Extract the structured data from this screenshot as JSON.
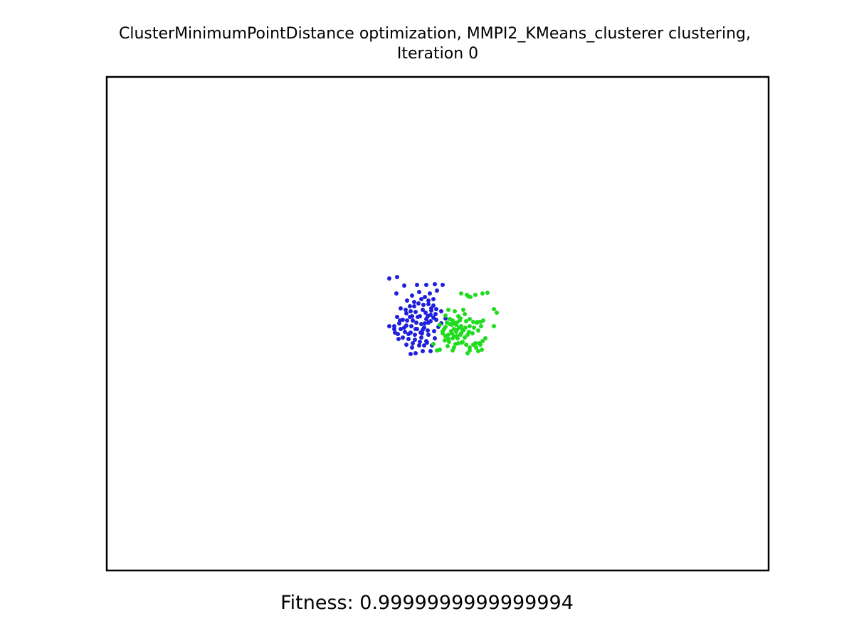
{
  "chart_data": {
    "type": "scatter",
    "title": "ClusterMinimumPointDistance optimization, MMPI2_KMeans_clusterer clustering,",
    "subtitle": "Iteration 0",
    "footer": "Fitness: 0.9999999999999994",
    "axes_visible": false,
    "grid": false,
    "xlim": [
      0,
      930
    ],
    "ylim": [
      0,
      693
    ],
    "series": [
      {
        "color": "#1f1fdc",
        "points": [
          [
            397,
            283
          ],
          [
            408,
            281
          ],
          [
            407,
            304
          ],
          [
            418,
            293
          ],
          [
            436,
            292
          ],
          [
            449,
            292
          ],
          [
            461,
            291
          ],
          [
            472,
            292
          ],
          [
            464,
            300
          ],
          [
            454,
            304
          ],
          [
            447,
            309
          ],
          [
            439,
            302
          ],
          [
            429,
            307
          ],
          [
            422,
            314
          ],
          [
            413,
            325
          ],
          [
            408,
            337
          ],
          [
            411,
            346
          ],
          [
            418,
            352
          ],
          [
            428,
            350
          ],
          [
            435,
            345
          ],
          [
            442,
            347
          ],
          [
            447,
            346
          ],
          [
            452,
            345
          ],
          [
            455,
            343
          ],
          [
            459,
            338
          ],
          [
            463,
            341
          ],
          [
            462,
            333
          ],
          [
            459,
            321
          ],
          [
            452,
            319
          ],
          [
            445,
            320
          ],
          [
            438,
            318
          ],
          [
            432,
            322
          ],
          [
            427,
            329
          ],
          [
            421,
            332
          ],
          [
            416,
            341
          ],
          [
            421,
            349
          ],
          [
            430,
            342
          ],
          [
            440,
            336
          ],
          [
            448,
            331
          ],
          [
            456,
            325
          ],
          [
            459,
            312
          ],
          [
            452,
            314
          ],
          [
            442,
            312
          ],
          [
            432,
            316
          ],
          [
            426,
            322
          ],
          [
            420,
            327
          ],
          [
            426,
            337
          ],
          [
            434,
            330
          ],
          [
            444,
            327
          ],
          [
            451,
            336
          ],
          [
            456,
            328
          ],
          [
            463,
            326
          ],
          [
            470,
            329
          ],
          [
            476,
            339
          ],
          [
            470,
            346
          ],
          [
            466,
            351
          ],
          [
            460,
            357
          ],
          [
            451,
            356
          ],
          [
            444,
            355
          ],
          [
            436,
            354
          ],
          [
            427,
            359
          ],
          [
            419,
            358
          ],
          [
            413,
            354
          ],
          [
            404,
            354
          ],
          [
            409,
            361
          ],
          [
            416,
            366
          ],
          [
            424,
            368
          ],
          [
            433,
            369
          ],
          [
            442,
            366
          ],
          [
            452,
            362
          ],
          [
            461,
            367
          ],
          [
            449,
            371
          ],
          [
            440,
            372
          ],
          [
            430,
            374
          ],
          [
            421,
            376
          ],
          [
            429,
            380
          ],
          [
            439,
            377
          ],
          [
            446,
            377
          ],
          [
            450,
            373
          ],
          [
            457,
            377
          ],
          [
            444,
            385
          ],
          [
            434,
            388
          ],
          [
            427,
            389
          ],
          [
            455,
            385
          ],
          [
            434,
            354
          ],
          [
            446,
            352
          ],
          [
            441,
            359
          ],
          [
            437,
            337
          ],
          [
            429,
            336
          ],
          [
            422,
            342
          ],
          [
            412,
            342
          ],
          [
            404,
            350
          ],
          [
            397,
            350
          ],
          [
            405,
            359
          ],
          [
            410,
            368
          ],
          [
            424,
            361
          ],
          [
            433,
            362
          ],
          [
            443,
            360
          ],
          [
            449,
            340
          ],
          [
            455,
            334
          ]
        ]
      },
      {
        "color": "#1fdc1f",
        "points": [
          [
            498,
            304
          ],
          [
            506,
            306
          ],
          [
            508,
            308
          ],
          [
            511,
            309
          ],
          [
            518,
            306
          ],
          [
            528,
            304
          ],
          [
            535,
            303
          ],
          [
            544,
            326
          ],
          [
            548,
            331
          ],
          [
            544,
            350
          ],
          [
            503,
            333
          ],
          [
            497,
            339
          ],
          [
            494,
            336
          ],
          [
            492,
            345
          ],
          [
            498,
            350
          ],
          [
            501,
            356
          ],
          [
            497,
            362
          ],
          [
            492,
            364
          ],
          [
            488,
            364
          ],
          [
            486,
            367
          ],
          [
            480,
            368
          ],
          [
            476,
            364
          ],
          [
            472,
            357
          ],
          [
            476,
            351
          ],
          [
            482,
            347
          ],
          [
            487,
            345
          ],
          [
            491,
            348
          ],
          [
            495,
            352
          ],
          [
            500,
            355
          ],
          [
            504,
            352
          ],
          [
            510,
            350
          ],
          [
            515,
            344
          ],
          [
            520,
            345
          ],
          [
            525,
            344
          ],
          [
            529,
            342
          ],
          [
            526,
            350
          ],
          [
            522,
            356
          ],
          [
            514,
            360
          ],
          [
            509,
            358
          ],
          [
            507,
            362
          ],
          [
            503,
            366
          ],
          [
            500,
            372
          ],
          [
            505,
            376
          ],
          [
            510,
            380
          ],
          [
            515,
            376
          ],
          [
            518,
            374
          ],
          [
            523,
            374
          ],
          [
            528,
            371
          ],
          [
            532,
            367
          ],
          [
            525,
            376
          ],
          [
            519,
            380
          ],
          [
            522,
            385
          ],
          [
            527,
            383
          ],
          [
            510,
            384
          ],
          [
            507,
            388
          ],
          [
            499,
            373
          ],
          [
            494,
            374
          ],
          [
            481,
            372
          ],
          [
            475,
            370
          ],
          [
            468,
            383
          ],
          [
            464,
            384
          ],
          [
            459,
            375
          ],
          [
            479,
            378
          ],
          [
            488,
            380
          ],
          [
            484,
            357
          ],
          [
            488,
            354
          ],
          [
            476,
            335
          ],
          [
            478,
            345
          ],
          [
            485,
            348
          ],
          [
            492,
            355
          ],
          [
            498,
            360
          ],
          [
            493,
            367
          ],
          [
            490,
            375
          ],
          [
            486,
            384
          ],
          [
            491,
            358
          ],
          [
            480,
            362
          ],
          [
            474,
            354
          ],
          [
            468,
            348
          ],
          [
            482,
            340
          ],
          [
            489,
            329
          ],
          [
            501,
            327
          ],
          [
            510,
            340
          ],
          [
            516,
            352
          ],
          [
            521,
            344
          ],
          [
            505,
            343
          ],
          [
            496,
            342
          ],
          [
            486,
            342
          ],
          [
            472,
            360
          ],
          [
            485,
            360
          ],
          [
            480,
            327
          ]
        ]
      }
    ]
  }
}
